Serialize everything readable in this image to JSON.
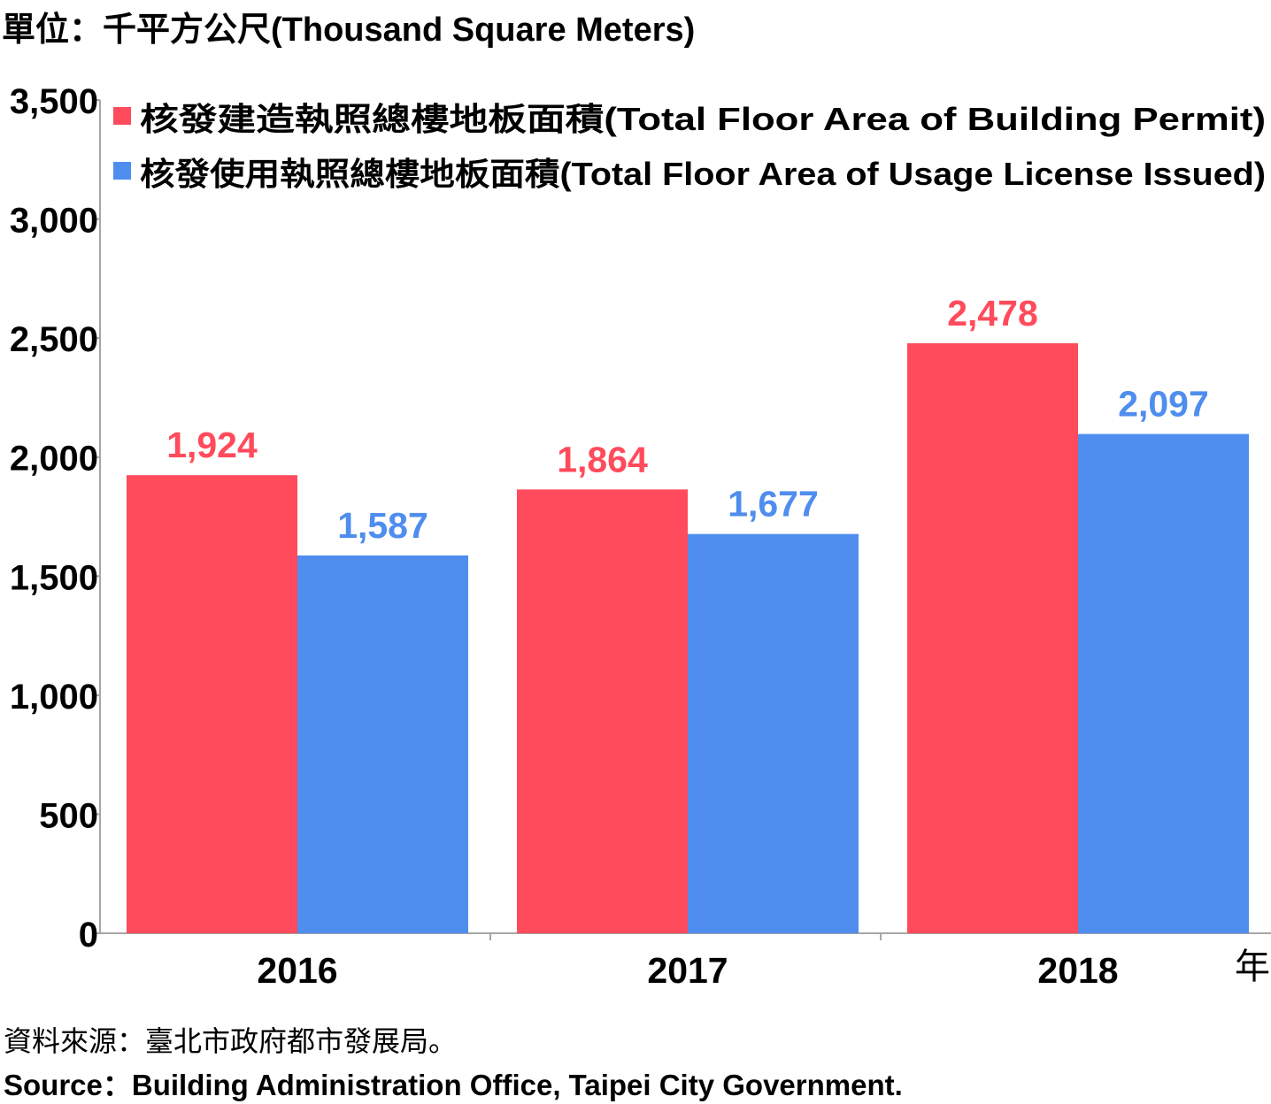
{
  "unit_label": "單位：千平方公尺(Thousand Square Meters)",
  "source_zh": "資料來源：臺北市政府都市發展局。",
  "source_en": "Source：Building Administration Office, Taipei City Government.",
  "chart_data": {
    "type": "bar",
    "categories": [
      "2016",
      "2017",
      "2018"
    ],
    "x_unit_label": "年",
    "ylim": [
      0,
      3500
    ],
    "yticks": [
      0,
      500,
      1000,
      1500,
      2000,
      2500,
      3000,
      3500
    ],
    "ytick_labels": [
      "0",
      "500",
      "1,000",
      "1,500",
      "2,000",
      "2,500",
      "3,000",
      "3,500"
    ],
    "grid": false,
    "legend_position": "top",
    "series": [
      {
        "name": "核發建造執照總樓地板面積(Total Floor Area of Building Permit)",
        "color": "#ff4b5c",
        "values": [
          1924,
          1864,
          2478
        ],
        "labels": [
          "1,924",
          "1,864",
          "2,478"
        ]
      },
      {
        "name": "核發使用執照總樓地板面積(Total Floor Area of Usage License Issued)",
        "color": "#4f8dee",
        "values": [
          1587,
          1677,
          2097
        ],
        "labels": [
          "1,587",
          "1,677",
          "2,097"
        ]
      }
    ]
  }
}
